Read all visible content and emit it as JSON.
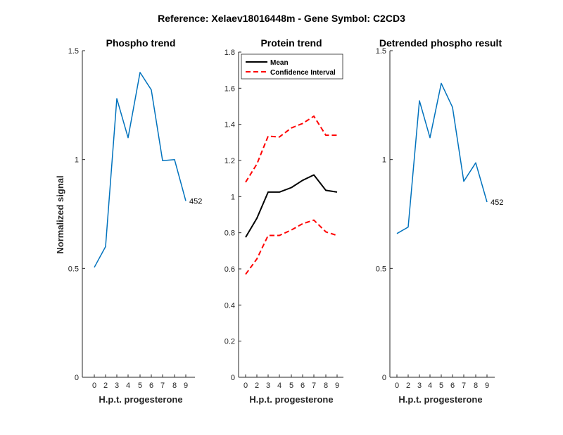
{
  "figure_title": "Reference:  Xelaev18016448m - Gene Symbol:  C2CD3",
  "chart_data": [
    {
      "type": "line",
      "title": "Phospho trend",
      "xlabel": "H.p.t. progesterone",
      "ylabel": "Normalized signal",
      "x": [
        0,
        2,
        3,
        4,
        5,
        6,
        7,
        8,
        9
      ],
      "ylim": [
        0,
        1.5
      ],
      "yticks": [
        "0",
        "0.5",
        "1",
        "1.5"
      ],
      "series": [
        {
          "name": "",
          "color": "#0072BD",
          "style": "solid",
          "values": [
            0.505,
            0.6,
            1.28,
            1.1,
            1.4,
            1.32,
            0.995,
            1.0,
            0.81
          ]
        }
      ],
      "annotation": "452"
    },
    {
      "type": "line",
      "title": "Protein trend",
      "xlabel": "H.p.t. progesterone",
      "ylabel": "",
      "x": [
        0,
        2,
        3,
        4,
        5,
        6,
        7,
        8,
        9
      ],
      "ylim": [
        0,
        1.8
      ],
      "yticks": [
        "0",
        "0.2",
        "0.4",
        "0.6",
        "0.8",
        "1",
        "1.2",
        "1.4",
        "1.6",
        "1.8"
      ],
      "legend_position": "top-left",
      "series": [
        {
          "name": "Mean",
          "color": "#000000",
          "style": "solid",
          "values": [
            0.775,
            0.88,
            1.025,
            1.025,
            1.05,
            1.09,
            1.12,
            1.035,
            1.025
          ]
        },
        {
          "name": "Confidence Interval",
          "color": "#FF0000",
          "style": "dashed",
          "values": [
            1.08,
            1.18,
            1.335,
            1.33,
            1.38,
            1.405,
            1.445,
            1.34,
            1.34
          ]
        },
        {
          "name": "",
          "color": "#FF0000",
          "style": "dashed",
          "values": [
            0.57,
            0.655,
            0.785,
            0.785,
            0.815,
            0.85,
            0.87,
            0.805,
            0.785
          ]
        }
      ]
    },
    {
      "type": "line",
      "title": "Detrended phospho result",
      "xlabel": "H.p.t. progesterone",
      "ylabel": "",
      "x": [
        0,
        2,
        3,
        4,
        5,
        6,
        7,
        8,
        9
      ],
      "ylim": [
        0,
        1.5
      ],
      "yticks": [
        "0",
        "0.5",
        "1",
        "1.5"
      ],
      "series": [
        {
          "name": "",
          "color": "#0072BD",
          "style": "solid",
          "values": [
            0.66,
            0.69,
            1.27,
            1.1,
            1.35,
            1.24,
            0.9,
            0.985,
            0.805
          ]
        }
      ],
      "annotation": "452"
    }
  ]
}
